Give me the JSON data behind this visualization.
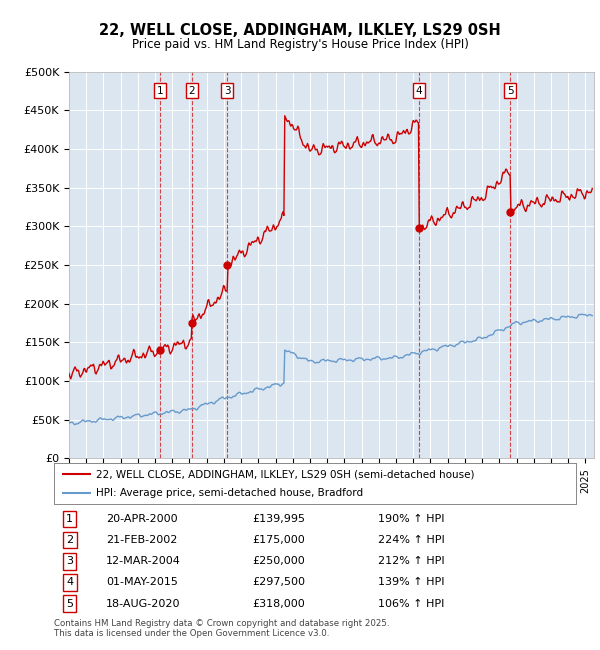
{
  "title": "22, WELL CLOSE, ADDINGHAM, ILKLEY, LS29 0SH",
  "subtitle": "Price paid vs. HM Land Registry's House Price Index (HPI)",
  "background_color": "#ffffff",
  "plot_bg_color": "#dce6f0",
  "grid_color": "#ffffff",
  "ylim": [
    0,
    500000
  ],
  "yticks": [
    0,
    50000,
    100000,
    150000,
    200000,
    250000,
    300000,
    350000,
    400000,
    450000,
    500000
  ],
  "ytick_labels": [
    "£0",
    "£50K",
    "£100K",
    "£150K",
    "£200K",
    "£250K",
    "£300K",
    "£350K",
    "£400K",
    "£450K",
    "£500K"
  ],
  "xlim_start": 1995.0,
  "xlim_end": 2025.5,
  "purchases": [
    {
      "num": 1,
      "date_str": "20-APR-2000",
      "date_x": 2000.29,
      "price": 139995,
      "pct": "190%",
      "label": "1"
    },
    {
      "num": 2,
      "date_str": "21-FEB-2002",
      "date_x": 2002.13,
      "price": 175000,
      "pct": "224%",
      "label": "2"
    },
    {
      "num": 3,
      "date_str": "12-MAR-2004",
      "date_x": 2004.19,
      "price": 250000,
      "pct": "212%",
      "label": "3"
    },
    {
      "num": 4,
      "date_str": "01-MAY-2015",
      "date_x": 2015.33,
      "price": 297500,
      "pct": "139%",
      "label": "4"
    },
    {
      "num": 5,
      "date_str": "18-AUG-2020",
      "date_x": 2020.63,
      "price": 318000,
      "pct": "106%",
      "label": "5"
    }
  ],
  "legend_line1": "22, WELL CLOSE, ADDINGHAM, ILKLEY, LS29 0SH (semi-detached house)",
  "legend_line2": "HPI: Average price, semi-detached house, Bradford",
  "table_rows": [
    [
      "1",
      "20-APR-2000",
      "£139,995",
      "190% ↑ HPI"
    ],
    [
      "2",
      "21-FEB-2002",
      "£175,000",
      "224% ↑ HPI"
    ],
    [
      "3",
      "12-MAR-2004",
      "£250,000",
      "212% ↑ HPI"
    ],
    [
      "4",
      "01-MAY-2015",
      "£297,500",
      "139% ↑ HPI"
    ],
    [
      "5",
      "18-AUG-2020",
      "£318,000",
      "106% ↑ HPI"
    ]
  ],
  "footer": "Contains HM Land Registry data © Crown copyright and database right 2025.\nThis data is licensed under the Open Government Licence v3.0.",
  "red_color": "#cc0000",
  "blue_color": "#6699cc"
}
